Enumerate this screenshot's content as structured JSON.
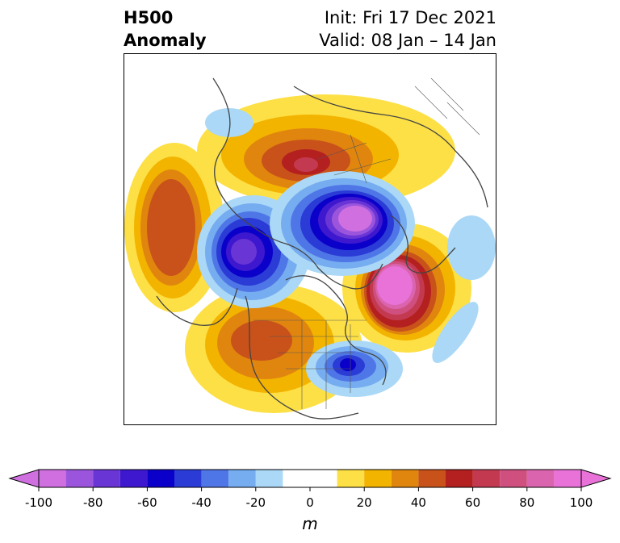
{
  "title": {
    "left_line1": "H500",
    "left_line2": "Anomaly",
    "right_line1": "Init: Fri 17 Dec 2021",
    "right_line2": "Valid: 08 Jan – 14 Jan"
  },
  "colorbar": {
    "unit": "m",
    "ticks": [
      "-100",
      "-80",
      "-60",
      "-40",
      "-20",
      "0",
      "20",
      "40",
      "60",
      "80",
      "100"
    ],
    "tick_values": [
      -100,
      -80,
      -60,
      -40,
      -20,
      0,
      20,
      40,
      60,
      80,
      100
    ],
    "bins": [
      -100,
      -90,
      -80,
      -70,
      -60,
      -50,
      -40,
      -30,
      -20,
      -10,
      10,
      20,
      30,
      40,
      50,
      60,
      70,
      80,
      90,
      100
    ],
    "colors": [
      "#d070e0",
      "#9b55dd",
      "#6a35d5",
      "#3e18cf",
      "#0a00c9",
      "#2a3bd6",
      "#4f76e6",
      "#76acf0",
      "#aad8f6",
      "#ffffff",
      "#fde046",
      "#f3b400",
      "#e0860e",
      "#c9521a",
      "#b42020",
      "#c33a50",
      "#cf4f7f",
      "#da64ad",
      "#e872d8"
    ]
  },
  "map": {
    "legend_min_color": "#d070e0",
    "legend_max_color": "#e872d8"
  }
}
